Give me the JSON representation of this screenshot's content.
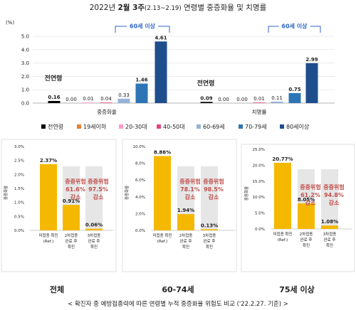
{
  "colors": {
    "all": "#000000",
    "u19": "#ed7d31",
    "a2030": "#ff99cc",
    "a4050": "#e6457a",
    "a6069": "#95b3d7",
    "a7079": "#2e75b6",
    "a80": "#1f4e8c",
    "gold": "#f5b800",
    "gray_bar": "#e6e6e6",
    "red_text": "#c0504d",
    "bracket": "#2e64c8"
  },
  "top": {
    "title_pre": "2022년 ",
    "title_bold": "2월 3주",
    "title_small": "(2.13~2.19)",
    "title_post": " 연령별 중증화율 및 치명률"
  },
  "chart_data": [
    {
      "type": "bar",
      "ylabel": "(%)",
      "ylim": [
        0,
        5.0
      ],
      "yticks": [
        "0.0",
        "1.0",
        "2.0",
        "3.0",
        "4.0",
        "5.0"
      ],
      "groups": [
        {
          "name": "중증화율",
          "values": [
            0.16,
            0.0,
            0.01,
            0.04,
            0.33,
            1.46,
            4.61
          ],
          "labels": [
            "0.16",
            "0.00",
            "0.01",
            "0.04",
            "0.33",
            "1.46",
            "4.61"
          ]
        },
        {
          "name": "치명률",
          "values": [
            0.09,
            0.0,
            0.0,
            0.01,
            0.11,
            0.75,
            2.99
          ],
          "labels": [
            "0.09",
            "0.00",
            "0.00",
            "0.01",
            "0.11",
            "0.75",
            "2.99"
          ]
        }
      ],
      "series": [
        {
          "name": "전연령",
          "color": "#000000"
        },
        {
          "name": "19세이하",
          "color": "#ed7d31"
        },
        {
          "name": "20-30대",
          "color": "#ff99cc"
        },
        {
          "name": "40-50대",
          "color": "#e6457a"
        },
        {
          "name": "60-69세",
          "color": "#95b3d7"
        },
        {
          "name": "70-79세",
          "color": "#2e75b6"
        },
        {
          "name": "80세이상",
          "color": "#1f4e8c"
        }
      ],
      "annotations": {
        "all_ages": "전연령",
        "over60": "60세 이상"
      }
    },
    {
      "type": "bar",
      "title": "전체",
      "ylabel": "중증화율",
      "ylim": [
        0,
        3.0
      ],
      "yticks": [
        "0.0%",
        "0.5%",
        "1.0%",
        "1.5%",
        "2.0%",
        "2.5%",
        "3.0%"
      ],
      "categories": [
        [
          "미접종 확진",
          "(Ref.)"
        ],
        [
          "2차접종",
          "완료 후",
          "확진"
        ],
        [
          "3차접종",
          "완료 후",
          "확진"
        ]
      ],
      "values": [
        2.37,
        0.91,
        0.06
      ],
      "labels": [
        "2.37%",
        "0.91%",
        "0.06%"
      ],
      "reductions": [
        [
          "중증위험",
          "61.6%",
          "감소"
        ],
        [
          "중증위험",
          "97.5%",
          "감소"
        ]
      ]
    },
    {
      "type": "bar",
      "title": "60-74세",
      "ylabel": "중증화율",
      "ylim": [
        0,
        10.0
      ],
      "yticks": [
        "0.0%",
        "2.0%",
        "4.0%",
        "6.0%",
        "8.0%",
        "10.0%"
      ],
      "categories": [
        [
          "미접종 확진",
          "(Ref.)"
        ],
        [
          "2차접종",
          "완료 후",
          "확진"
        ],
        [
          "3차접종",
          "완료 후",
          "확진"
        ]
      ],
      "values": [
        8.86,
        1.94,
        0.13
      ],
      "labels": [
        "8.86%",
        "1.94%",
        "0.13%"
      ],
      "reductions": [
        [
          "중증위험",
          "78.1%",
          "감소"
        ],
        [
          "중증위험",
          "98.5%",
          "감소"
        ]
      ]
    },
    {
      "type": "bar",
      "title": "75세 이상",
      "ylabel": "중증화율",
      "ylim": [
        0,
        25.0
      ],
      "yticks": [
        "0.0%",
        "5.0%",
        "10.0%",
        "15.0%",
        "20.0%",
        "25.0%"
      ],
      "categories": [
        [
          "미접종 확진",
          "(Ref.)"
        ],
        [
          "2차접종",
          "완료 후",
          "확진"
        ],
        [
          "3차접종",
          "완료 후",
          "확진"
        ]
      ],
      "values": [
        20.77,
        8.05,
        1.08
      ],
      "labels": [
        "20.77%",
        "8.05%",
        "1.08%"
      ],
      "reductions": [
        [
          "중증위험",
          "61.2%",
          "감소"
        ],
        [
          "중증위험",
          "94.8%",
          "감소"
        ]
      ]
    }
  ],
  "caption": "< 확진자 중 예방접종력에 따른 연령별 누적 중증화율 위험도 비교 ('22.2.27. 기준) >"
}
